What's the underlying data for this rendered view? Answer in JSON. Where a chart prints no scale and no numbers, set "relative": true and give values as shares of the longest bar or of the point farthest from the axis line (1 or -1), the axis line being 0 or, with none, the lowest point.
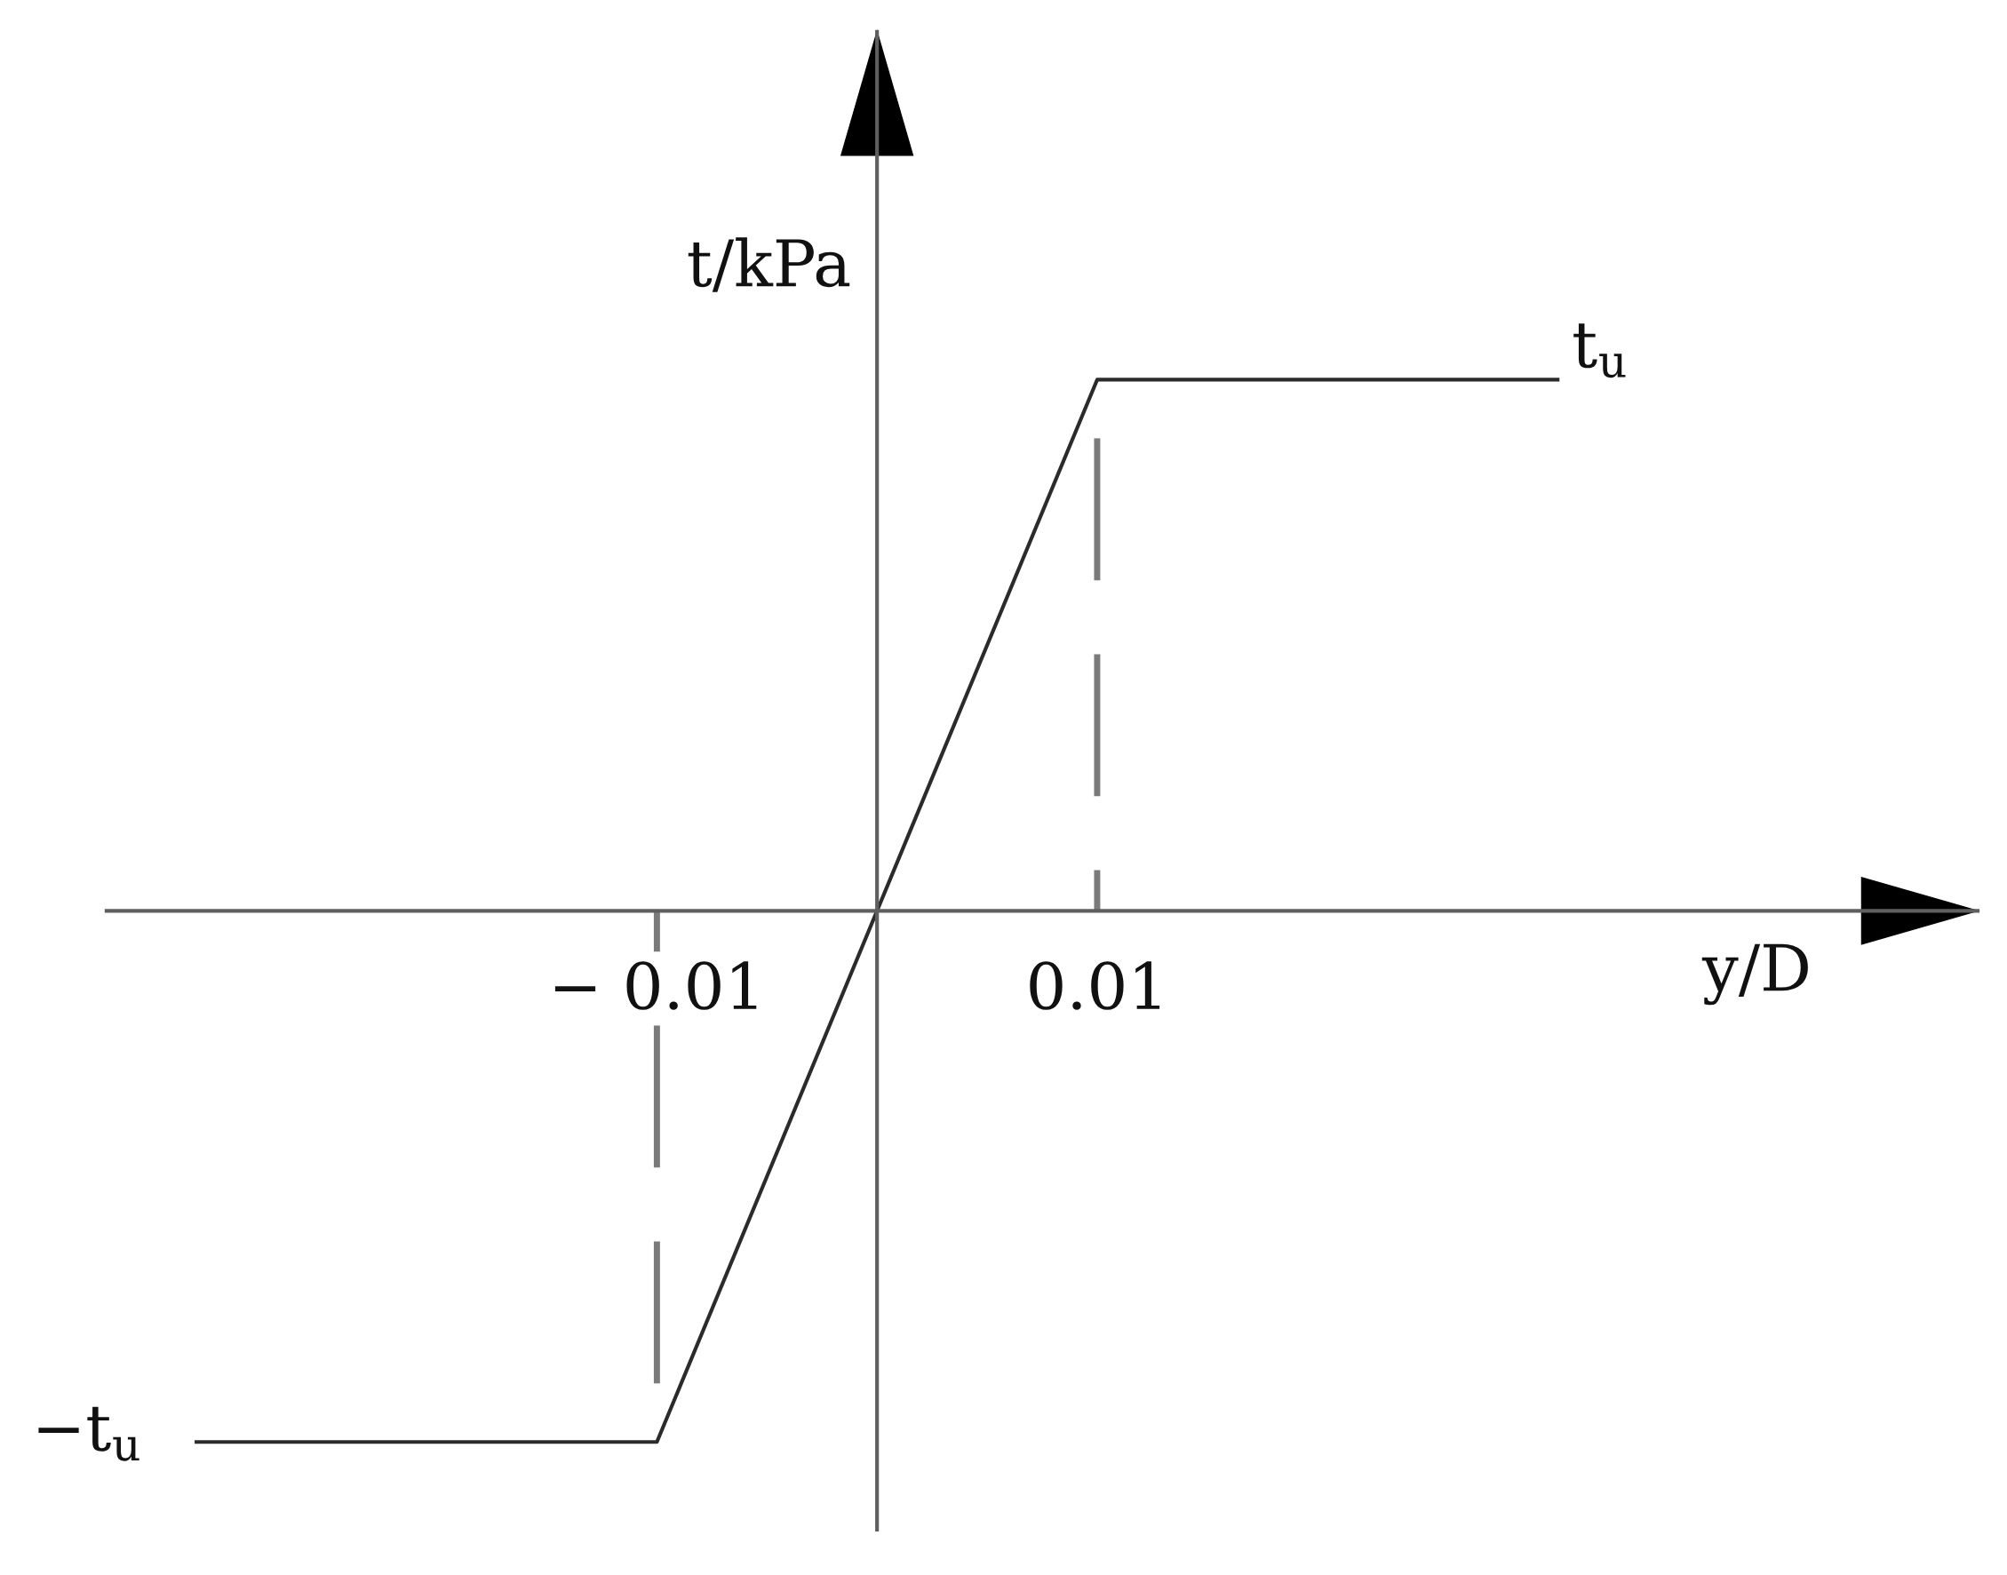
{
  "chart_data": {
    "type": "line",
    "xlabel": "y/D",
    "ylabel": "t/kPa",
    "relative": true,
    "xlim": [
      -0.035,
      0.05
    ],
    "xticks": [
      {
        "value": -0.01,
        "label": "− 0.01"
      },
      0.01
    ],
    "tick_labels": "x",
    "line_style": "solid",
    "series": [
      {
        "x": [
          -0.031,
          -0.01,
          0.01,
          0.031
        ],
        "values": [
          -1,
          -1,
          1,
          1
        ],
        "color": "#2b2b2b"
      },
      {
        "x": [
          0.01,
          0.01
        ],
        "values": [
          0,
          1
        ],
        "color": "#7a7a7a",
        "line_style": "dashed"
      },
      {
        "x": [
          -0.01,
          -0.01
        ],
        "values": [
          0,
          -1
        ],
        "color": "#7a7a7a",
        "line_style": "dashed"
      }
    ],
    "annotations": [
      {
        "text": "t$_{u}$",
        "x": 0.031,
        "y": 1
      },
      {
        "text": "−t$_{u}$",
        "x": -0.031,
        "y": -1
      }
    ]
  }
}
